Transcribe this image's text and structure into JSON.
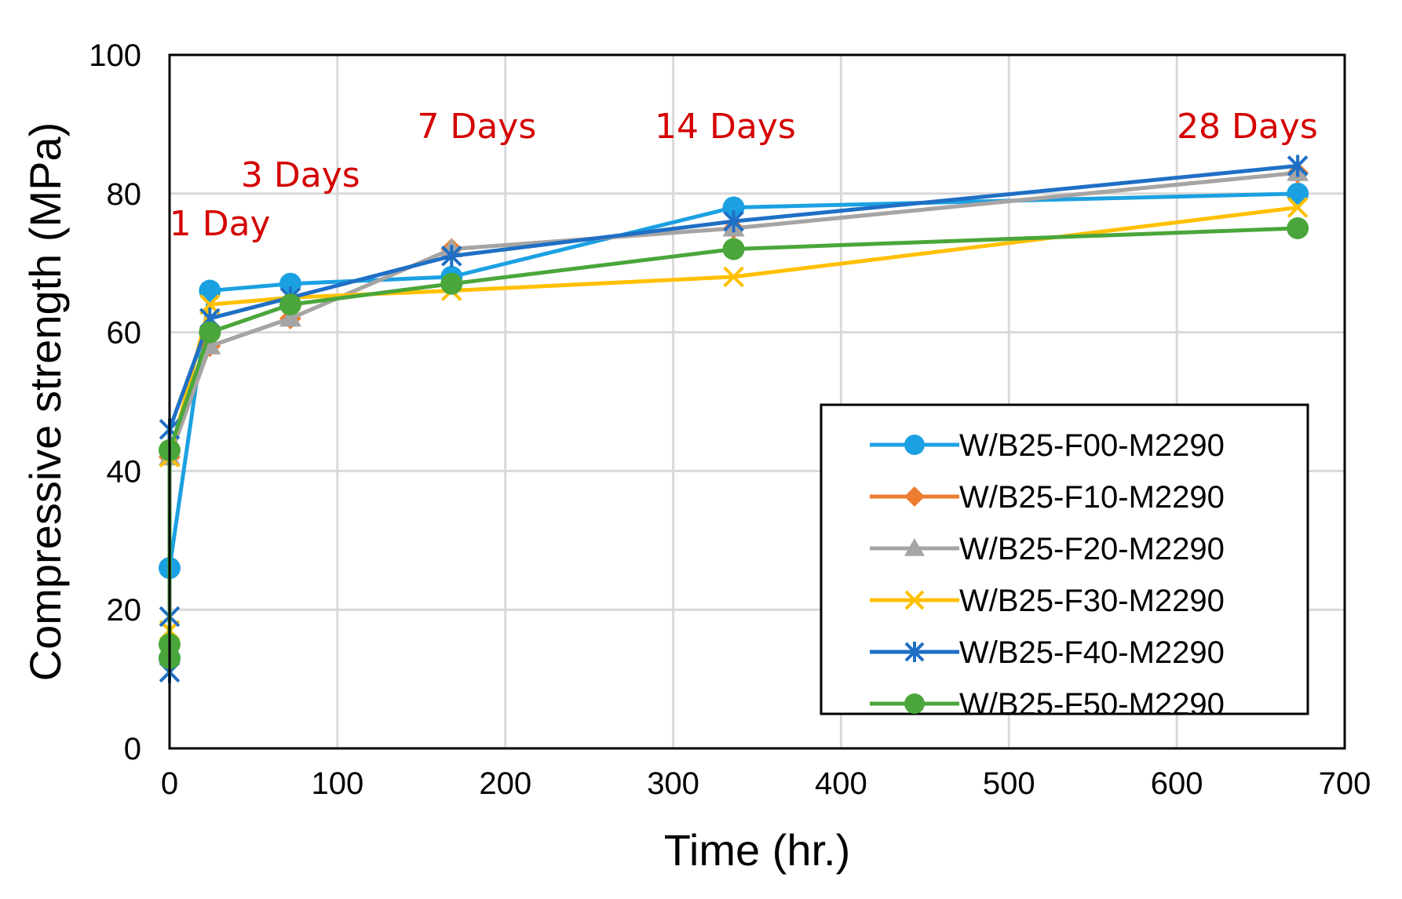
{
  "chart_data": {
    "type": "line",
    "title": "",
    "xlabel": "Time (hr.)",
    "ylabel": "Compressive strength (MPa)",
    "xlim": [
      0,
      700
    ],
    "ylim": [
      0,
      100
    ],
    "xticks": [
      0,
      100,
      200,
      300,
      400,
      500,
      600,
      700
    ],
    "yticks": [
      0,
      20,
      40,
      60,
      80,
      100
    ],
    "grid": true,
    "legend_position": "bottom-right",
    "annotations": [
      {
        "text": "1 Day",
        "x": 30,
        "y": 74,
        "color": "#d40000"
      },
      {
        "text": "3 Days",
        "x": 78,
        "y": 81,
        "color": "#d40000"
      },
      {
        "text": "7 Days",
        "x": 183,
        "y": 88,
        "color": "#d40000"
      },
      {
        "text": "14 Days",
        "x": 331,
        "y": 88,
        "color": "#d40000"
      },
      {
        "text": "28 Days",
        "x": 642,
        "y": 88,
        "color": "#d40000"
      }
    ],
    "series": [
      {
        "name": "W/B25-F00-M2290",
        "color": "#1ba1e2",
        "marker": "circle",
        "x": [
          0,
          0,
          24,
          72,
          168,
          336,
          672
        ],
        "values": [
          13,
          26,
          66,
          67,
          68,
          78,
          80
        ]
      },
      {
        "name": "W/B25-F10-M2290",
        "color": "#ed7d31",
        "marker": "diamond",
        "x": [
          0,
          0,
          24,
          72,
          168,
          336,
          672
        ],
        "values": [
          13,
          42,
          58,
          62,
          72,
          75,
          83
        ]
      },
      {
        "name": "W/B25-F20-M2290",
        "color": "#a5a5a5",
        "marker": "triangle",
        "x": [
          0,
          0,
          24,
          72,
          168,
          336,
          672
        ],
        "values": [
          16,
          42,
          58,
          62,
          72,
          75,
          83
        ]
      },
      {
        "name": "W/B25-F30-M2290",
        "color": "#ffc000",
        "marker": "x",
        "x": [
          0,
          0,
          24,
          72,
          168,
          336,
          672
        ],
        "values": [
          17,
          42,
          64,
          65,
          66,
          68,
          78
        ]
      },
      {
        "name": "W/B25-F40-M2290",
        "color": "#1f6fc5",
        "marker": "asterisk",
        "x": [
          0,
          0,
          0,
          24,
          72,
          168,
          336,
          672
        ],
        "values": [
          11,
          19,
          46,
          62,
          65,
          71,
          76,
          84
        ]
      },
      {
        "name": "W/B25-F50-M2290",
        "color": "#4aa63a",
        "marker": "circle",
        "x": [
          0,
          0,
          0,
          24,
          72,
          168,
          336,
          672
        ],
        "values": [
          13,
          15,
          43,
          60,
          64,
          67,
          72,
          75
        ]
      }
    ]
  }
}
